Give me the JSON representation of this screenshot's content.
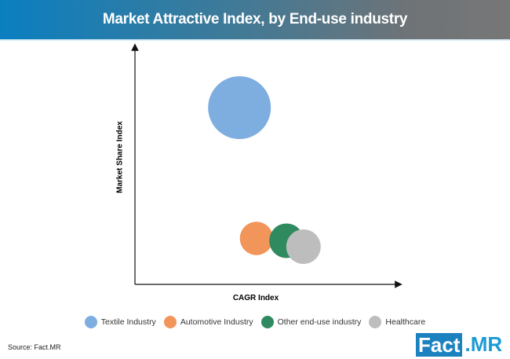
{
  "header": {
    "title": "Market Attractive Index, by End-use industry"
  },
  "chart_data": {
    "type": "bubble",
    "title": "Market Attractive Index, by End-use industry",
    "xlabel": "CAGR Index",
    "ylabel": "Market Share Index",
    "xlim": [
      0,
      10
    ],
    "ylim": [
      0,
      10
    ],
    "grid": false,
    "legend_position": "bottom",
    "series": [
      {
        "name": "Textile Industry",
        "x": 4.0,
        "y": 7.5,
        "size": 1.0,
        "color": "#7eaee0"
      },
      {
        "name": "Automotive Industry",
        "x": 4.65,
        "y": 1.95,
        "size": 0.53,
        "color": "#f2955a"
      },
      {
        "name": "Other end-use industry",
        "x": 5.8,
        "y": 1.85,
        "size": 0.55,
        "color": "#2f8a5f"
      },
      {
        "name": "Healthcare",
        "x": 6.45,
        "y": 1.6,
        "size": 0.55,
        "color": "#bdbdbd"
      }
    ]
  },
  "footer": {
    "source": "Source: Fact.MR",
    "logo_left": "Fact",
    "logo_right": ".MR"
  }
}
